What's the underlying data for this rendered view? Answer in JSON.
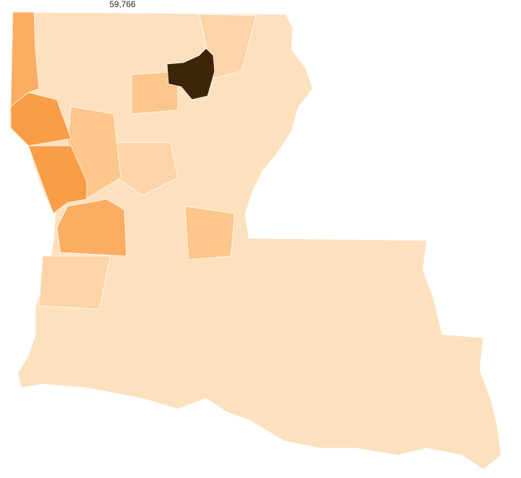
{
  "map": {
    "top_label": "59,766",
    "colors": {
      "base": "#fde0bd",
      "light": "#fdd4a7",
      "medium": "#fdc68a",
      "orange": "#fcad62",
      "strong": "#f99d47",
      "max": "#3e2408"
    }
  }
}
